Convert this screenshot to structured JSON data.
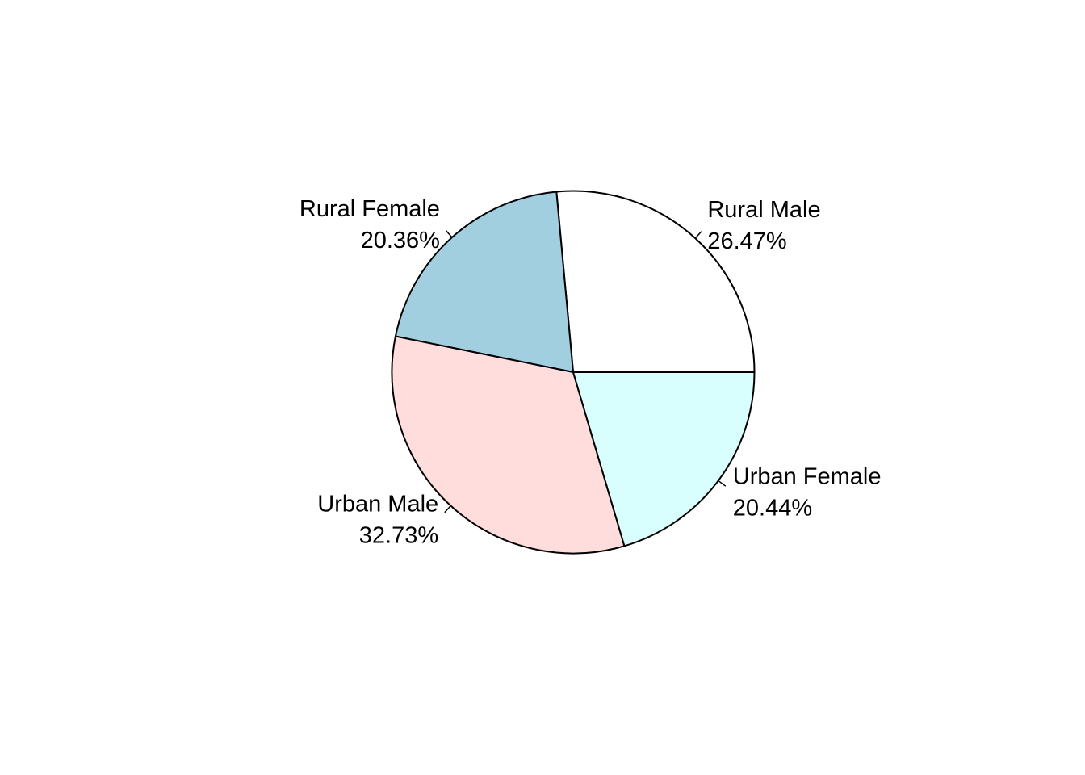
{
  "chart_data": {
    "type": "pie",
    "title": "",
    "start_angle_deg": 0,
    "direction": "counterclockwise",
    "slices": [
      {
        "name": "Rural Male",
        "value": 26.47,
        "label_pct": "26.47%",
        "color": "#FFFFFF"
      },
      {
        "name": "Rural Female",
        "value": 20.36,
        "label_pct": "20.36%",
        "color": "#A1CFE0"
      },
      {
        "name": "Urban Male",
        "value": 32.73,
        "label_pct": "32.73%",
        "color": "#FEDDDC"
      },
      {
        "name": "Urban Female",
        "value": 20.44,
        "label_pct": "20.44%",
        "color": "#D8FEFE"
      }
    ],
    "legend": "none",
    "grid": false
  }
}
